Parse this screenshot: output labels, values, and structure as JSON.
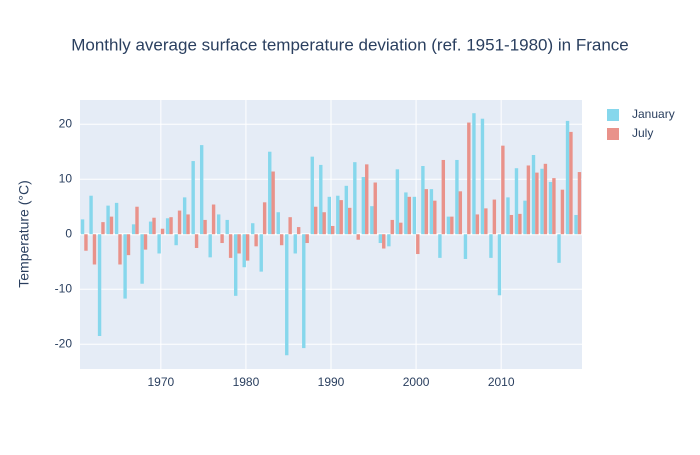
{
  "chart_data": {
    "type": "bar",
    "title": "Monthly average surface temperature deviation (ref. 1951-1980) in France",
    "y_label": "Temperature (°C)",
    "x": [
      1961,
      1962,
      1963,
      1964,
      1965,
      1966,
      1967,
      1968,
      1969,
      1970,
      1971,
      1972,
      1973,
      1974,
      1975,
      1976,
      1977,
      1978,
      1979,
      1980,
      1981,
      1982,
      1983,
      1984,
      1985,
      1986,
      1987,
      1988,
      1989,
      1990,
      1991,
      1992,
      1993,
      1994,
      1995,
      1996,
      1997,
      1998,
      1999,
      2000,
      2001,
      2002,
      2003,
      2004,
      2005,
      2006,
      2007,
      2008,
      2009,
      2010,
      2011,
      2012,
      2013,
      2014,
      2015,
      2016,
      2017,
      2018,
      2019
    ],
    "series": [
      {
        "name": "January",
        "color": "#86d7ec",
        "values": [
          2.7,
          7,
          -18.5,
          5.2,
          5.7,
          -11.7,
          1.8,
          -9,
          2.3,
          -3.5,
          2.9,
          -2,
          6.7,
          13.3,
          16.2,
          -4.2,
          3.6,
          2.6,
          -11.2,
          -6,
          2,
          -6.8,
          15,
          4,
          -22,
          -3.5,
          -20.7,
          14.1,
          12.6,
          6.8,
          7,
          8.8,
          13.1,
          10.4,
          5.1,
          -1.6,
          -2.2,
          11.8,
          7.6,
          6.8,
          12.4,
          8.2,
          -4.3,
          3.2,
          13.5,
          -4.5,
          22,
          21,
          -4.3,
          -11.1,
          6.7,
          12,
          6.1,
          14.4,
          11.9,
          9.5,
          -5.2,
          20.6,
          3.5
        ]
      },
      {
        "name": "July",
        "color": "#e9928a",
        "values": [
          -3,
          -5.5,
          2.2,
          3.2,
          -5.5,
          -3.8,
          5,
          -2.8,
          3,
          1,
          3.1,
          4.3,
          3.6,
          -2.5,
          2.6,
          5.4,
          -1.6,
          -4.3,
          -3.5,
          -4.8,
          -2.2,
          5.8,
          11.4,
          -2,
          3.1,
          1.3,
          -1.6,
          5,
          4,
          1.5,
          6.2,
          4.8,
          -1,
          12.7,
          9.4,
          -2.6,
          2.6,
          2.1,
          6.8,
          -3.6,
          8.2,
          6.1,
          13.5,
          3.2,
          7.8,
          20.3,
          3.6,
          4.7,
          6.3,
          16.1,
          3.5,
          3.7,
          12.5,
          11.2,
          12.8,
          10.2,
          8.1,
          18.6,
          11.3
        ]
      }
    ],
    "xlim": [
      1960.5,
      2019.5
    ],
    "xticks": [
      1970,
      1980,
      1990,
      2000,
      2010
    ],
    "ylim": [
      -24.5,
      24.4
    ],
    "yticks": [
      -20,
      -10,
      0,
      10,
      20
    ],
    "grid": true,
    "legend": "top-right"
  }
}
